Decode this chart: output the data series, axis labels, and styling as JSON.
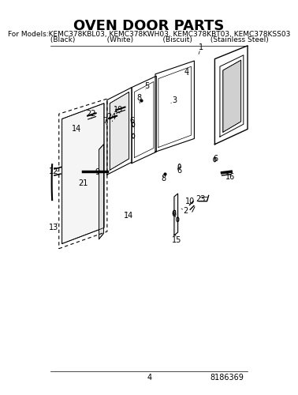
{
  "title": "OVEN DOOR PARTS",
  "subtitle_line1": "For Models:KEMC378KBL03, KEMC378KWH03, KEMC378KBT03, KEMC378KSS03",
  "subtitle_line2": "         (Black)              (White)             (Biscuit)        (Stainless Steel)",
  "page_number": "4",
  "part_number": "8186369",
  "bg_color": "#ffffff",
  "text_color": "#000000",
  "title_fontsize": 13,
  "subtitle_fontsize": 6.5,
  "footer_fontsize": 7
}
